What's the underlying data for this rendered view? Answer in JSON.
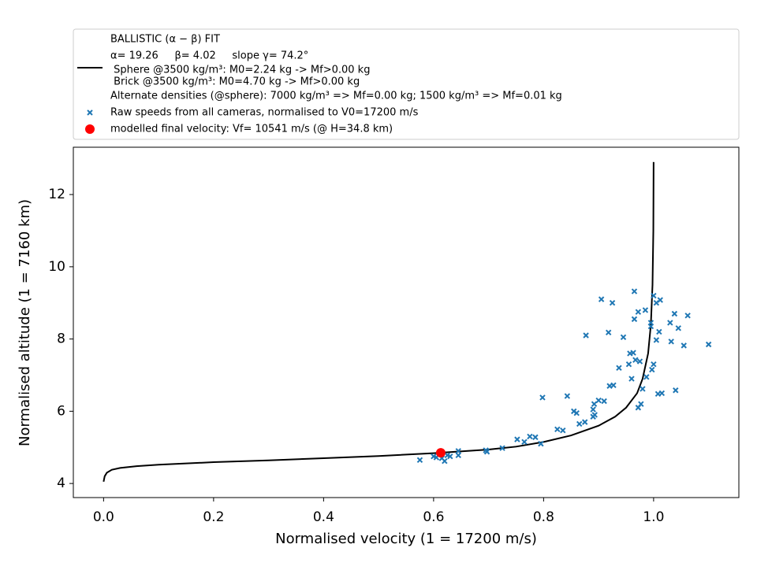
{
  "chart_data": {
    "type": "scatter",
    "xlabel": "Normalised velocity (1 = 17200 m/s)",
    "ylabel": "Normalised altitude (1 = 7160 km)",
    "xlim": [
      -0.055,
      1.155
    ],
    "xticks": [
      {
        "value": 0,
        "label": "0.0"
      },
      0.2,
      0.4,
      0.6,
      0.8,
      {
        "value": 1,
        "label": "1.0"
      }
    ],
    "ylim": [
      3.61,
      13.31
    ],
    "yticks": [
      4,
      6,
      8,
      10,
      12
    ],
    "legend": "top",
    "series": [
      {
        "type": "line",
        "color": "#000000",
        "name": [
          "BALLISTIC (α − β) FIT",
          "α= 19.26     β= 4.02     slope γ= 74.2°",
          " Sphere @3500 kg/m³: M0=2.24 kg -> Mf>0.00 kg",
          " Brick @3500 kg/m³: M0=4.70 kg -> Mf>0.00 kg",
          "Alternate densities (@sphere): 7000 kg/m³ => Mf=0.00 kg; 1500 kg/m³ => Mf=0.01 kg"
        ],
        "x": [
          0,
          0.002,
          0.006,
          0.015,
          0.03,
          0.06,
          0.1,
          0.2,
          0.3,
          0.4,
          0.5,
          0.6,
          0.7,
          0.75,
          0.8,
          0.85,
          0.9,
          0.93,
          0.95,
          0.97,
          0.98,
          0.99,
          0.995,
          0.998,
          0.9995,
          1.0
        ],
        "y": [
          4.05,
          4.2,
          4.3,
          4.38,
          4.43,
          4.48,
          4.52,
          4.59,
          4.64,
          4.7,
          4.76,
          4.84,
          4.94,
          5.02,
          5.15,
          5.33,
          5.6,
          5.85,
          6.1,
          6.5,
          6.9,
          7.6,
          8.4,
          9.5,
          11,
          12.9
        ]
      },
      {
        "type": "scatter",
        "marker": "x",
        "color": "#1f77b4",
        "name": "Raw speeds from all cameras, normalised to V0=17200 m/s",
        "x": [
          0.575,
          0.6,
          0.605,
          0.61,
          0.615,
          0.62,
          0.625,
          0.63,
          0.645,
          0.645,
          0.695,
          0.697,
          0.725,
          0.752,
          0.765,
          0.775,
          0.785,
          0.795,
          0.798,
          0.825,
          0.835,
          0.843,
          0.855,
          0.86,
          0.865,
          0.875,
          0.877,
          0.89,
          0.89,
          0.892,
          0.893,
          0.9,
          0.905,
          0.91,
          0.918,
          0.92,
          0.925,
          0.927,
          0.937,
          0.945,
          0.955,
          0.957,
          0.96,
          0.963,
          0.965,
          0.965,
          0.967,
          0.972,
          0.972,
          0.975,
          0.977,
          0.98,
          0.985,
          0.987,
          0.995,
          0.995,
          0.997,
          1.0,
          1.0,
          1.005,
          1.005,
          1.01,
          1.008,
          1.012,
          1.015,
          1.03,
          1.032,
          1.038,
          1.04,
          1.045,
          1.055,
          1.062,
          1.1
        ],
        "y": [
          4.65,
          4.75,
          4.72,
          4.8,
          4.7,
          4.62,
          4.78,
          4.75,
          4.9,
          4.78,
          4.92,
          4.88,
          4.98,
          5.22,
          5.15,
          5.3,
          5.28,
          5.1,
          6.38,
          5.5,
          5.47,
          6.42,
          6.0,
          5.95,
          5.65,
          5.7,
          8.1,
          5.85,
          6.05,
          6.2,
          5.9,
          6.3,
          9.1,
          6.28,
          8.18,
          6.7,
          9.0,
          6.72,
          7.2,
          8.05,
          7.3,
          7.6,
          6.9,
          7.62,
          8.55,
          9.32,
          7.42,
          8.75,
          6.1,
          7.38,
          6.2,
          6.62,
          8.8,
          6.95,
          8.35,
          8.45,
          7.15,
          9.2,
          7.3,
          9.0,
          7.97,
          8.2,
          6.48,
          9.08,
          6.5,
          8.45,
          7.93,
          8.7,
          6.58,
          8.3,
          7.82,
          8.65,
          7.85
        ]
      },
      {
        "type": "scatter",
        "marker": "o",
        "color": "#ff0000",
        "name": "modelled final velocity: Vf= 10541 m/s (@ H=34.8 km)",
        "x": [
          0.613
        ],
        "y": [
          4.85
        ]
      }
    ]
  }
}
